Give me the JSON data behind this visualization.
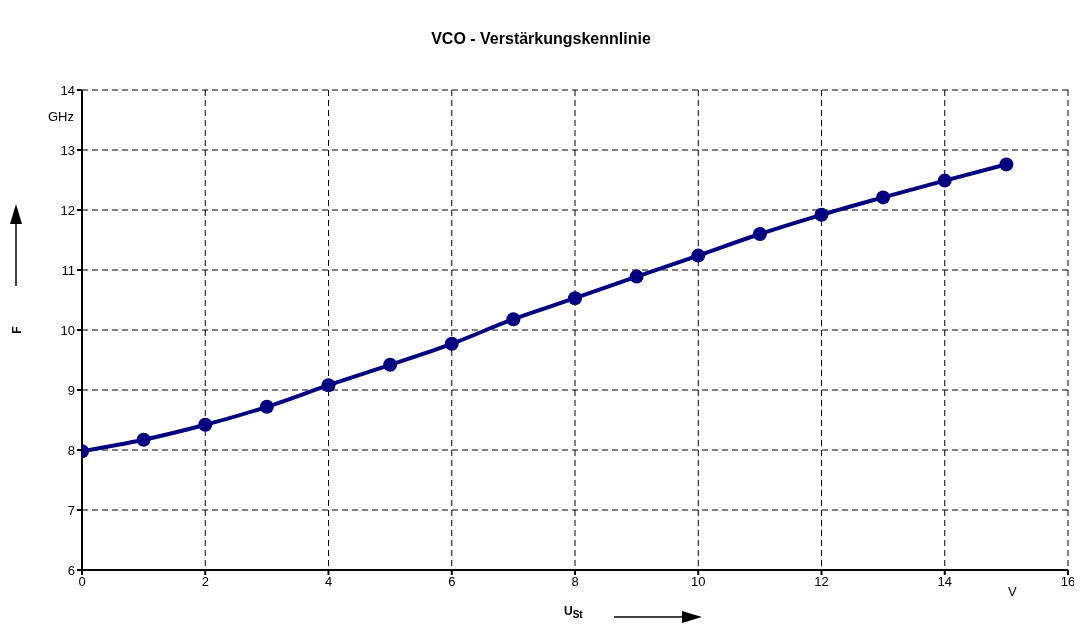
{
  "chart_data": {
    "type": "line",
    "title": "VCO - Verstärkungskennlinie",
    "xlabel": "U$_{St}$",
    "ylabel": "F",
    "annotations": [
      "GHz",
      "V"
    ],
    "x": [
      0,
      1,
      2,
      3,
      4,
      5,
      6,
      7,
      8,
      9,
      10,
      11,
      12,
      13,
      14,
      15
    ],
    "series": [
      {
        "color": "#000080",
        "values": [
          7.98,
          8.17,
          8.42,
          8.72,
          9.08,
          9.42,
          9.77,
          10.18,
          10.53,
          10.89,
          11.24,
          11.6,
          11.92,
          12.21,
          12.49,
          12.76
        ]
      }
    ],
    "xlim": [
      0,
      16
    ],
    "xticks": [
      0,
      2,
      4,
      6,
      8,
      10,
      12,
      14,
      16
    ],
    "ylim": [
      6,
      14
    ],
    "yticks": [
      6,
      7,
      8,
      9,
      10,
      11,
      12,
      13,
      14
    ],
    "grid": true,
    "marker": "circle",
    "line_style": "solid"
  }
}
